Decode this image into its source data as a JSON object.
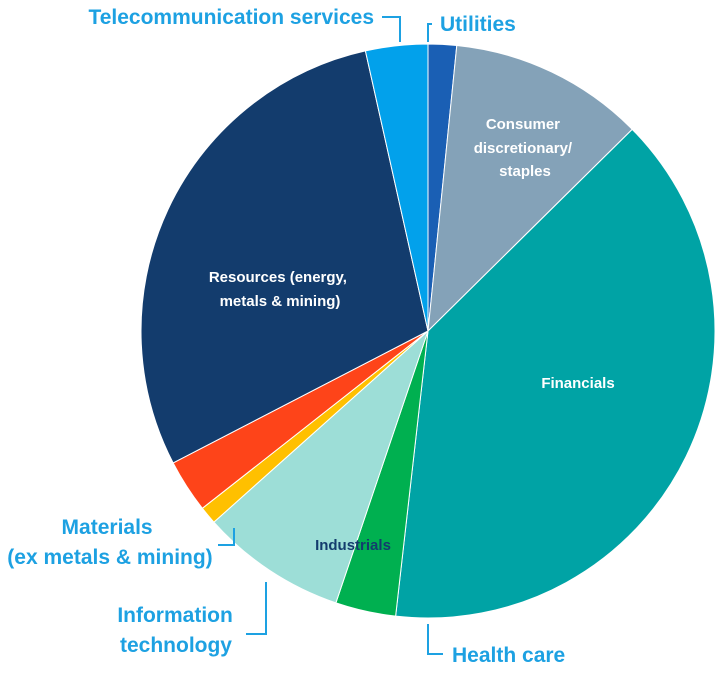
{
  "chart_data": {
    "type": "pie",
    "title": "",
    "slices": [
      {
        "label": "Utilities",
        "value": 1.6,
        "color": "#1a5fb4"
      },
      {
        "label": "Consumer discretionary/ staples",
        "value": 11.0,
        "color": "#84a2b8"
      },
      {
        "label": "Financials",
        "value": 39.2,
        "color": "#00a3a5"
      },
      {
        "label": "Health care",
        "value": 3.4,
        "color": "#00b050"
      },
      {
        "label": "Industrials",
        "value": 8.2,
        "color": "#9dded7"
      },
      {
        "label": "Information technology",
        "value": 1.0,
        "color": "#ffc000"
      },
      {
        "label": "Materials (ex metals & mining)",
        "value": 3.0,
        "color": "#fe4419"
      },
      {
        "label": "Resources (energy, metals & mining)",
        "value": 29.1,
        "color": "#133c6d"
      },
      {
        "label": "Telecommunication services",
        "value": 3.5,
        "color": "#02a1eb"
      }
    ],
    "label_color_external": "#1da1e2",
    "label_color_dark": "#133c6d",
    "label_color_light": "#ffffff"
  },
  "labels": {
    "utilities": "Utilities",
    "consumer": [
      "Consumer",
      "discretionary/",
      "staples"
    ],
    "financials": "Financials",
    "health_care": "Health care",
    "industrials": "Industrials",
    "information_technology": [
      "Information",
      "technology"
    ],
    "materials": [
      "Materials",
      "(ex metals & mining)"
    ],
    "resources": [
      "Resources (energy,",
      "metals & mining)"
    ],
    "telecommunication": "Telecommunication services"
  }
}
